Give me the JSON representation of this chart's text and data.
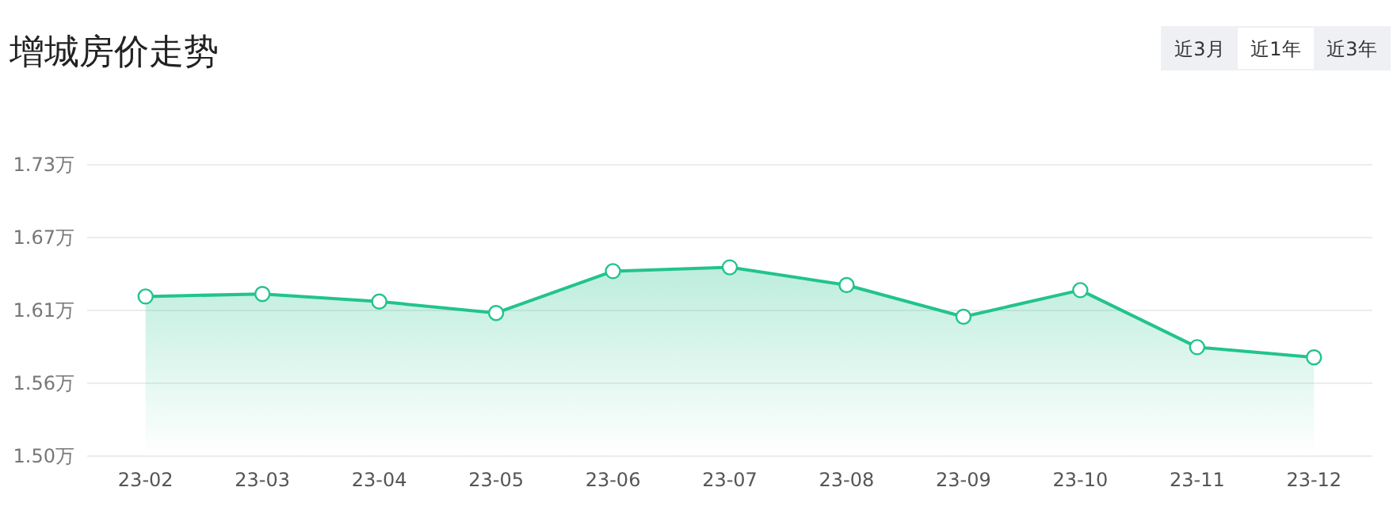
{
  "chart_data": {
    "type": "area",
    "title": "增城房价走势",
    "categories": [
      "23-02",
      "23-03",
      "23-04",
      "23-05",
      "23-06",
      "23-07",
      "23-08",
      "23-09",
      "23-10",
      "23-11",
      "23-12"
    ],
    "series": [
      {
        "color": "#22c38e",
        "values": [
          1.626,
          1.628,
          1.622,
          1.613,
          1.646,
          1.649,
          1.635,
          1.61,
          1.631,
          1.586,
          1.578
        ]
      }
    ],
    "ylim": [
      1.5,
      1.73
    ],
    "yticks": [
      {
        "value": 1.5,
        "label": "1.50万"
      },
      {
        "value": 1.5575,
        "label": "1.56万"
      },
      {
        "value": 1.615,
        "label": "1.61万"
      },
      {
        "value": 1.6725,
        "label": "1.67万"
      },
      {
        "value": 1.73,
        "label": "1.73万"
      }
    ],
    "grid": "y",
    "marker": "circle",
    "annotations": [
      "近3月",
      "近1年",
      "近3年"
    ]
  }
}
